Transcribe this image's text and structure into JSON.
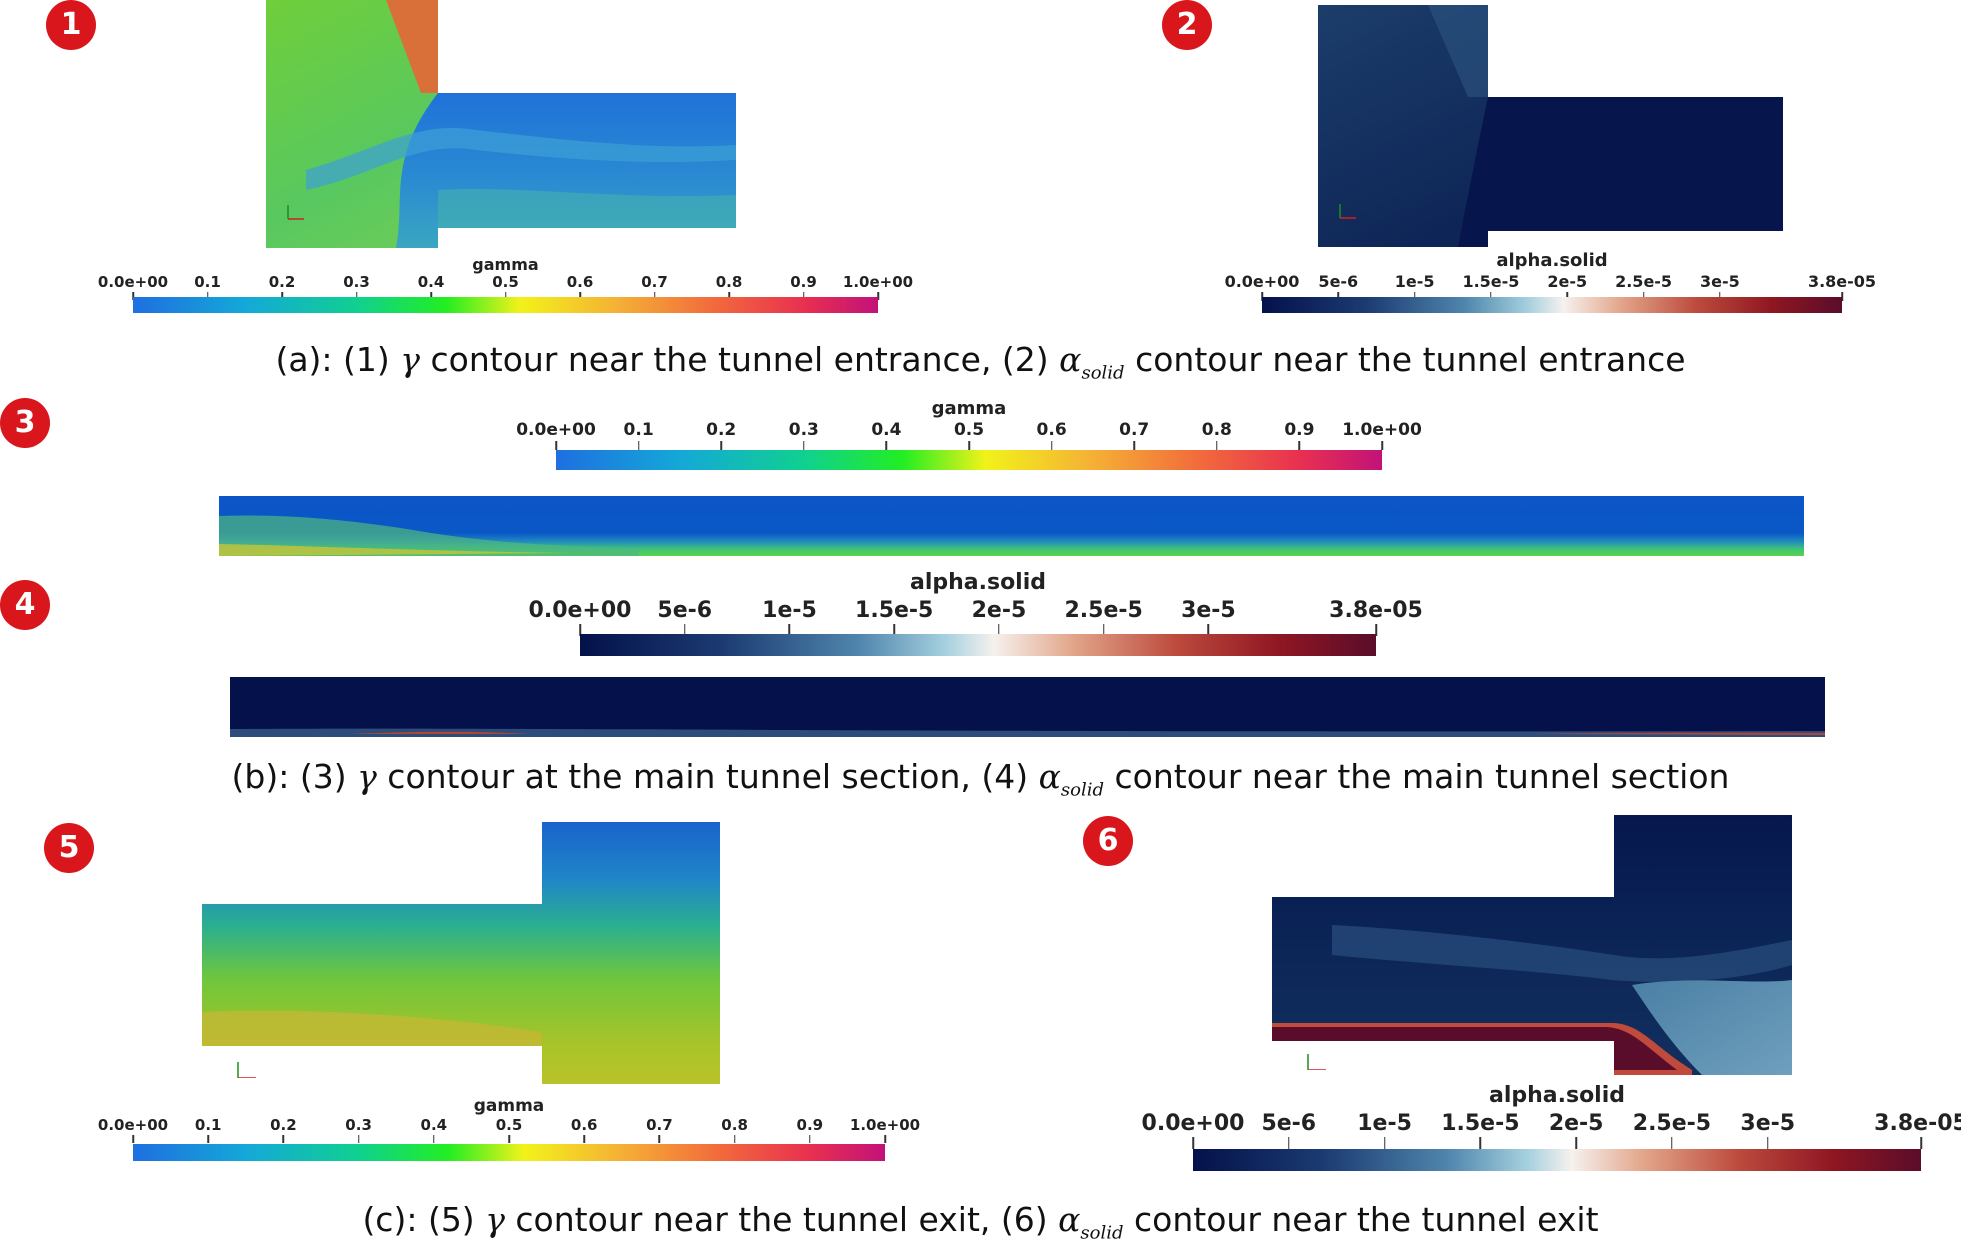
{
  "figure": {
    "badges": [
      "1",
      "2",
      "3",
      "4",
      "5",
      "6"
    ],
    "colorbars": {
      "gamma": {
        "title": "gamma",
        "ticks": [
          "0.0e+00",
          "0.1",
          "0.2",
          "0.3",
          "0.4",
          "0.5",
          "0.6",
          "0.7",
          "0.8",
          "0.9",
          "1.0e+00"
        ],
        "tick_values": [
          0,
          0.1,
          0.2,
          0.3,
          0.4,
          0.5,
          0.6,
          0.7,
          0.8,
          0.9,
          1.0
        ],
        "range": [
          0,
          1
        ]
      },
      "alpha_solid": {
        "title": "alpha.solid",
        "ticks": [
          "0.0e+00",
          "5e-6",
          "1e-5",
          "1.5e-5",
          "2e-5",
          "2.5e-5",
          "3e-5",
          "3.8e-05"
        ],
        "tick_values": [
          0,
          5e-06,
          1e-05,
          1.5e-05,
          2e-05,
          2.5e-05,
          3e-05,
          3.8e-05
        ],
        "range": [
          0,
          3.8e-05
        ]
      }
    },
    "captions": {
      "a": {
        "prefix": "(a): (1) ",
        "gamma": "γ",
        "mid": " contour near the tunnel entrance, (2) ",
        "alpha": "α",
        "sub": "solid",
        "suffix": " contour near the tunnel entrance"
      },
      "b": {
        "prefix": "(b): (3) ",
        "gamma": "γ",
        "mid": " contour at the main tunnel section, (4) ",
        "alpha": "α",
        "sub": "solid",
        "suffix": " contour near the main tunnel section"
      },
      "c": {
        "prefix": "(c): (5) ",
        "gamma": "γ",
        "mid": " contour near the tunnel exit, (6) ",
        "alpha": "α",
        "sub": "solid",
        "suffix": " contour near the tunnel exit"
      }
    },
    "colors": {
      "badge": "#d8161c",
      "gamma_scale": [
        "#1f6fe0",
        "#14a8d8",
        "#10d090",
        "#22ee22",
        "#f2f21a",
        "#f5b035",
        "#f26a3c",
        "#e83050",
        "#c21278"
      ],
      "alpha_scale": [
        "#04114a",
        "#1c3b72",
        "#4f86ad",
        "#a6d1df",
        "#f6f1ee",
        "#e2a589",
        "#bc4a3d",
        "#8e1622",
        "#5a0d2a"
      ]
    }
  }
}
